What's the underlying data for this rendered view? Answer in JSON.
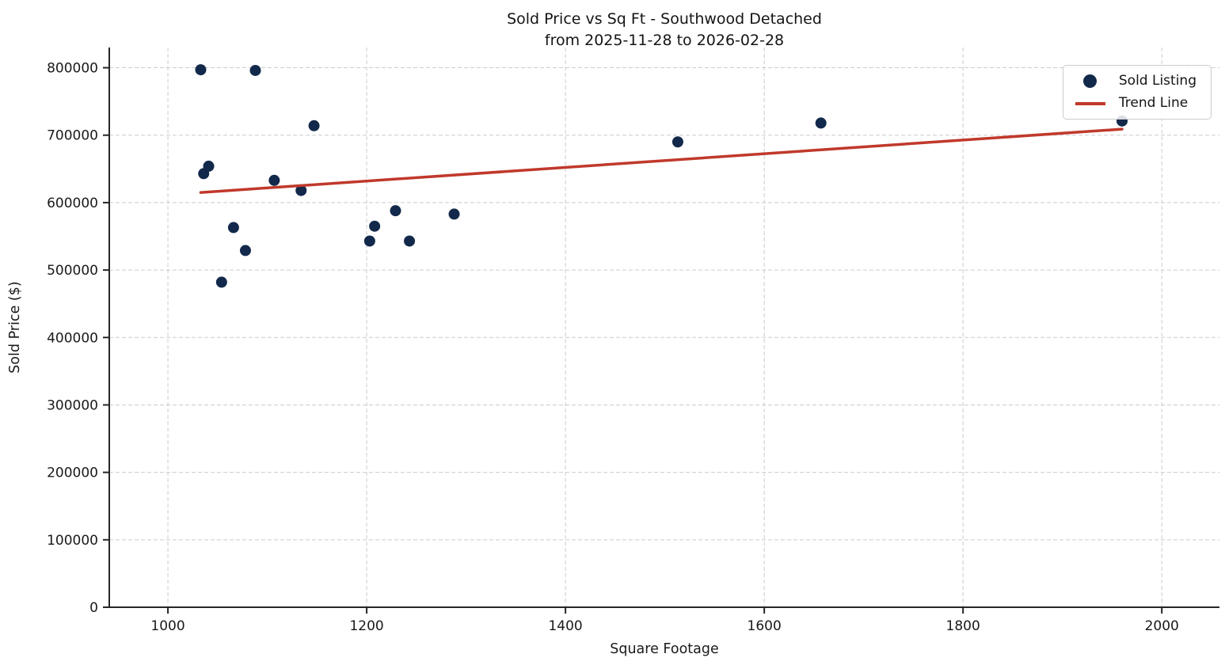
{
  "figure": {
    "title": "Sold Price vs Sq Ft - Southwood Detached",
    "subtitle": "from 2025-11-28 to 2026-02-28"
  },
  "chart_data": {
    "type": "scatter",
    "title": "Sold Price vs Sq Ft - Southwood Detached\nfrom 2025-11-28 to 2026-02-28",
    "xlabel": "Square Footage",
    "ylabel": "Sold Price ($)",
    "xlim": [
      941,
      2058
    ],
    "ylim": [
      0,
      830000
    ],
    "x_ticks": [
      1000,
      1200,
      1400,
      1600,
      1800,
      2000
    ],
    "y_ticks": [
      0,
      100000,
      200000,
      300000,
      400000,
      500000,
      600000,
      700000,
      800000
    ],
    "grid": true,
    "legend_position": "upper right",
    "series": [
      {
        "name": "Sold Listing",
        "type": "scatter",
        "color": "#12294b",
        "marker": "circle",
        "points": [
          [
            1033,
            797000
          ],
          [
            1088,
            796000
          ],
          [
            1147,
            714000
          ],
          [
            1036,
            643000
          ],
          [
            1041,
            654000
          ],
          [
            1107,
            633000
          ],
          [
            1134,
            618000
          ],
          [
            1066,
            563000
          ],
          [
            1078,
            529000
          ],
          [
            1054,
            482000
          ],
          [
            1203,
            543000
          ],
          [
            1208,
            565000
          ],
          [
            1229,
            588000
          ],
          [
            1243,
            543000
          ],
          [
            1288,
            583000
          ],
          [
            1513,
            690000
          ],
          [
            1657,
            718000
          ],
          [
            1960,
            721000
          ]
        ]
      },
      {
        "name": "Trend Line",
        "type": "line",
        "color": "#c0392b",
        "points": [
          [
            1033,
            615000
          ],
          [
            1960,
            709000
          ]
        ]
      }
    ]
  },
  "legend": {
    "items": [
      {
        "label": "Sold Listing",
        "marker": "dot-icon",
        "color": "#12294b"
      },
      {
        "label": "Trend Line",
        "marker": "line-icon",
        "color": "#c0392b"
      }
    ]
  },
  "colors": {
    "point": "#12294b",
    "trend": "#c0392b",
    "grid": "#cccccc",
    "axis": "#262626",
    "text": "#1a1a1a",
    "background": "#ffffff"
  }
}
